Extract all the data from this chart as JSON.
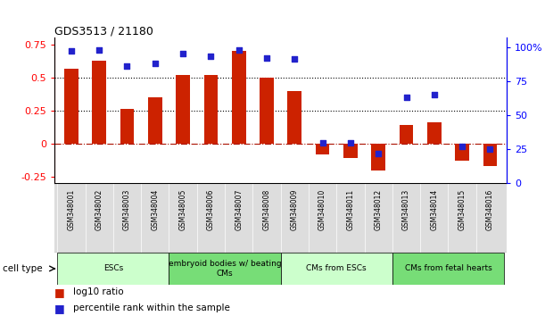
{
  "title": "GDS3513 / 21180",
  "samples": [
    "GSM348001",
    "GSM348002",
    "GSM348003",
    "GSM348004",
    "GSM348005",
    "GSM348006",
    "GSM348007",
    "GSM348008",
    "GSM348009",
    "GSM348010",
    "GSM348011",
    "GSM348012",
    "GSM348013",
    "GSM348014",
    "GSM348015",
    "GSM348016"
  ],
  "log10_ratio": [
    0.57,
    0.63,
    0.26,
    0.35,
    0.52,
    0.52,
    0.7,
    0.5,
    0.4,
    -0.08,
    -0.11,
    -0.2,
    0.14,
    0.16,
    -0.13,
    -0.17
  ],
  "percentile_rank": [
    97,
    98,
    86,
    88,
    95,
    93,
    98,
    92,
    91,
    30,
    30,
    22,
    63,
    65,
    27,
    25
  ],
  "bar_color": "#cc2200",
  "dot_color": "#2222cc",
  "ylim_left": [
    -0.3,
    0.8
  ],
  "ylim_right": [
    0,
    106.67
  ],
  "yticks_left": [
    -0.25,
    0,
    0.25,
    0.5,
    0.75
  ],
  "ytick_labels_left": [
    "-0.25",
    "0",
    "0.25",
    "0.5",
    "0.75"
  ],
  "yticks_right": [
    0,
    25,
    50,
    75,
    100
  ],
  "ytick_labels_right": [
    "0",
    "25",
    "50",
    "75",
    "100%"
  ],
  "hlines": [
    0.25,
    0.5
  ],
  "zero_line_color": "#aa1100",
  "cell_types": [
    {
      "label": "ESCs",
      "start": 0,
      "end": 3,
      "color": "#ccffcc"
    },
    {
      "label": "embryoid bodies w/ beating\nCMs",
      "start": 4,
      "end": 7,
      "color": "#77dd77"
    },
    {
      "label": "CMs from ESCs",
      "start": 8,
      "end": 11,
      "color": "#ccffcc"
    },
    {
      "label": "CMs from fetal hearts",
      "start": 12,
      "end": 15,
      "color": "#77dd77"
    }
  ],
  "legend_bar_label": "log10 ratio",
  "legend_dot_label": "percentile rank within the sample",
  "cell_type_label": "cell type"
}
